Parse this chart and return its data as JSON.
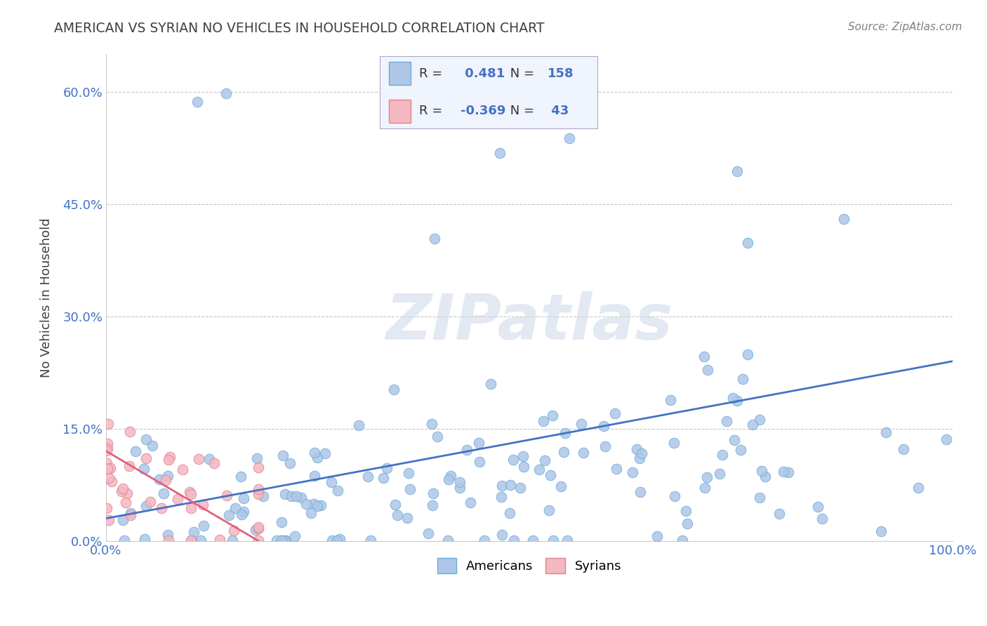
{
  "title": "AMERICAN VS SYRIAN NO VEHICLES IN HOUSEHOLD CORRELATION CHART",
  "source": "Source: ZipAtlas.com",
  "ylabel": "No Vehicles in Household",
  "xlabel": "",
  "xlim": [
    0.0,
    1.0
  ],
  "ylim": [
    0.0,
    0.65
  ],
  "yticks": [
    0.0,
    0.15,
    0.3,
    0.45,
    0.6
  ],
  "ytick_labels": [
    "0.0%",
    "15.0%",
    "30.0%",
    "45.0%",
    "60.0%"
  ],
  "xticks": [
    0.0,
    0.1,
    0.2,
    0.3,
    0.4,
    0.5,
    0.6,
    0.7,
    0.8,
    0.9,
    1.0
  ],
  "xtick_labels": [
    "0.0%",
    "",
    "",
    "",
    "",
    "",
    "",
    "",
    "",
    "",
    "100.0%"
  ],
  "american_R": 0.481,
  "american_N": 158,
  "syrian_R": -0.369,
  "syrian_N": 43,
  "american_color": "#aec6e8",
  "american_edge": "#6baed6",
  "syrian_color": "#f4b8c1",
  "syrian_edge": "#e08090",
  "american_line_color": "#4472c4",
  "syrian_line_color": "#e06080",
  "watermark": "ZIPatlas",
  "background_color": "#ffffff",
  "grid_color": "#c8c8c8",
  "title_color": "#404040",
  "source_color": "#808080",
  "axis_label_color": "#4472c4",
  "american_seed": 7,
  "syrian_seed": 99
}
